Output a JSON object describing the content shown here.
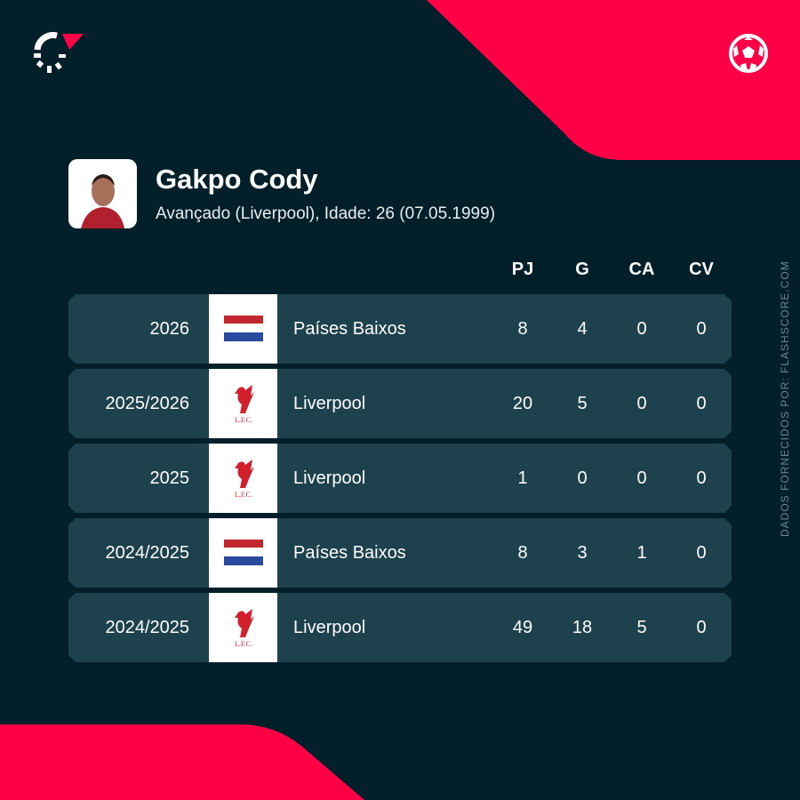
{
  "colors": {
    "background": "#03202a",
    "accent": "#ff0046",
    "row": "#1d424e"
  },
  "icons": {
    "logo": "flashscore-logo",
    "sport": "football-icon"
  },
  "player": {
    "name": "Gakpo Cody",
    "details": "Avançado (Liverpool), Idade: 26 (07.05.1999)"
  },
  "table": {
    "headers": [
      "PJ",
      "G",
      "CA",
      "CV"
    ],
    "rows": [
      {
        "season": "2026",
        "team": "Países Baixos",
        "logo": "netherlands-flag",
        "stats": [
          "8",
          "4",
          "0",
          "0"
        ]
      },
      {
        "season": "2025/2026",
        "team": "Liverpool",
        "logo": "liverpool-crest",
        "stats": [
          "20",
          "5",
          "0",
          "0"
        ]
      },
      {
        "season": "2025",
        "team": "Liverpool",
        "logo": "liverpool-crest",
        "stats": [
          "1",
          "0",
          "0",
          "0"
        ]
      },
      {
        "season": "2024/2025",
        "team": "Países Baixos",
        "logo": "netherlands-flag",
        "stats": [
          "8",
          "3",
          "1",
          "0"
        ]
      },
      {
        "season": "2024/2025",
        "team": "Liverpool",
        "logo": "liverpool-crest",
        "stats": [
          "49",
          "18",
          "5",
          "0"
        ]
      }
    ]
  },
  "credit": "DADOS FORNECIDOS POR: FLASHSCORE.COM",
  "crest_text": "L.F.C."
}
